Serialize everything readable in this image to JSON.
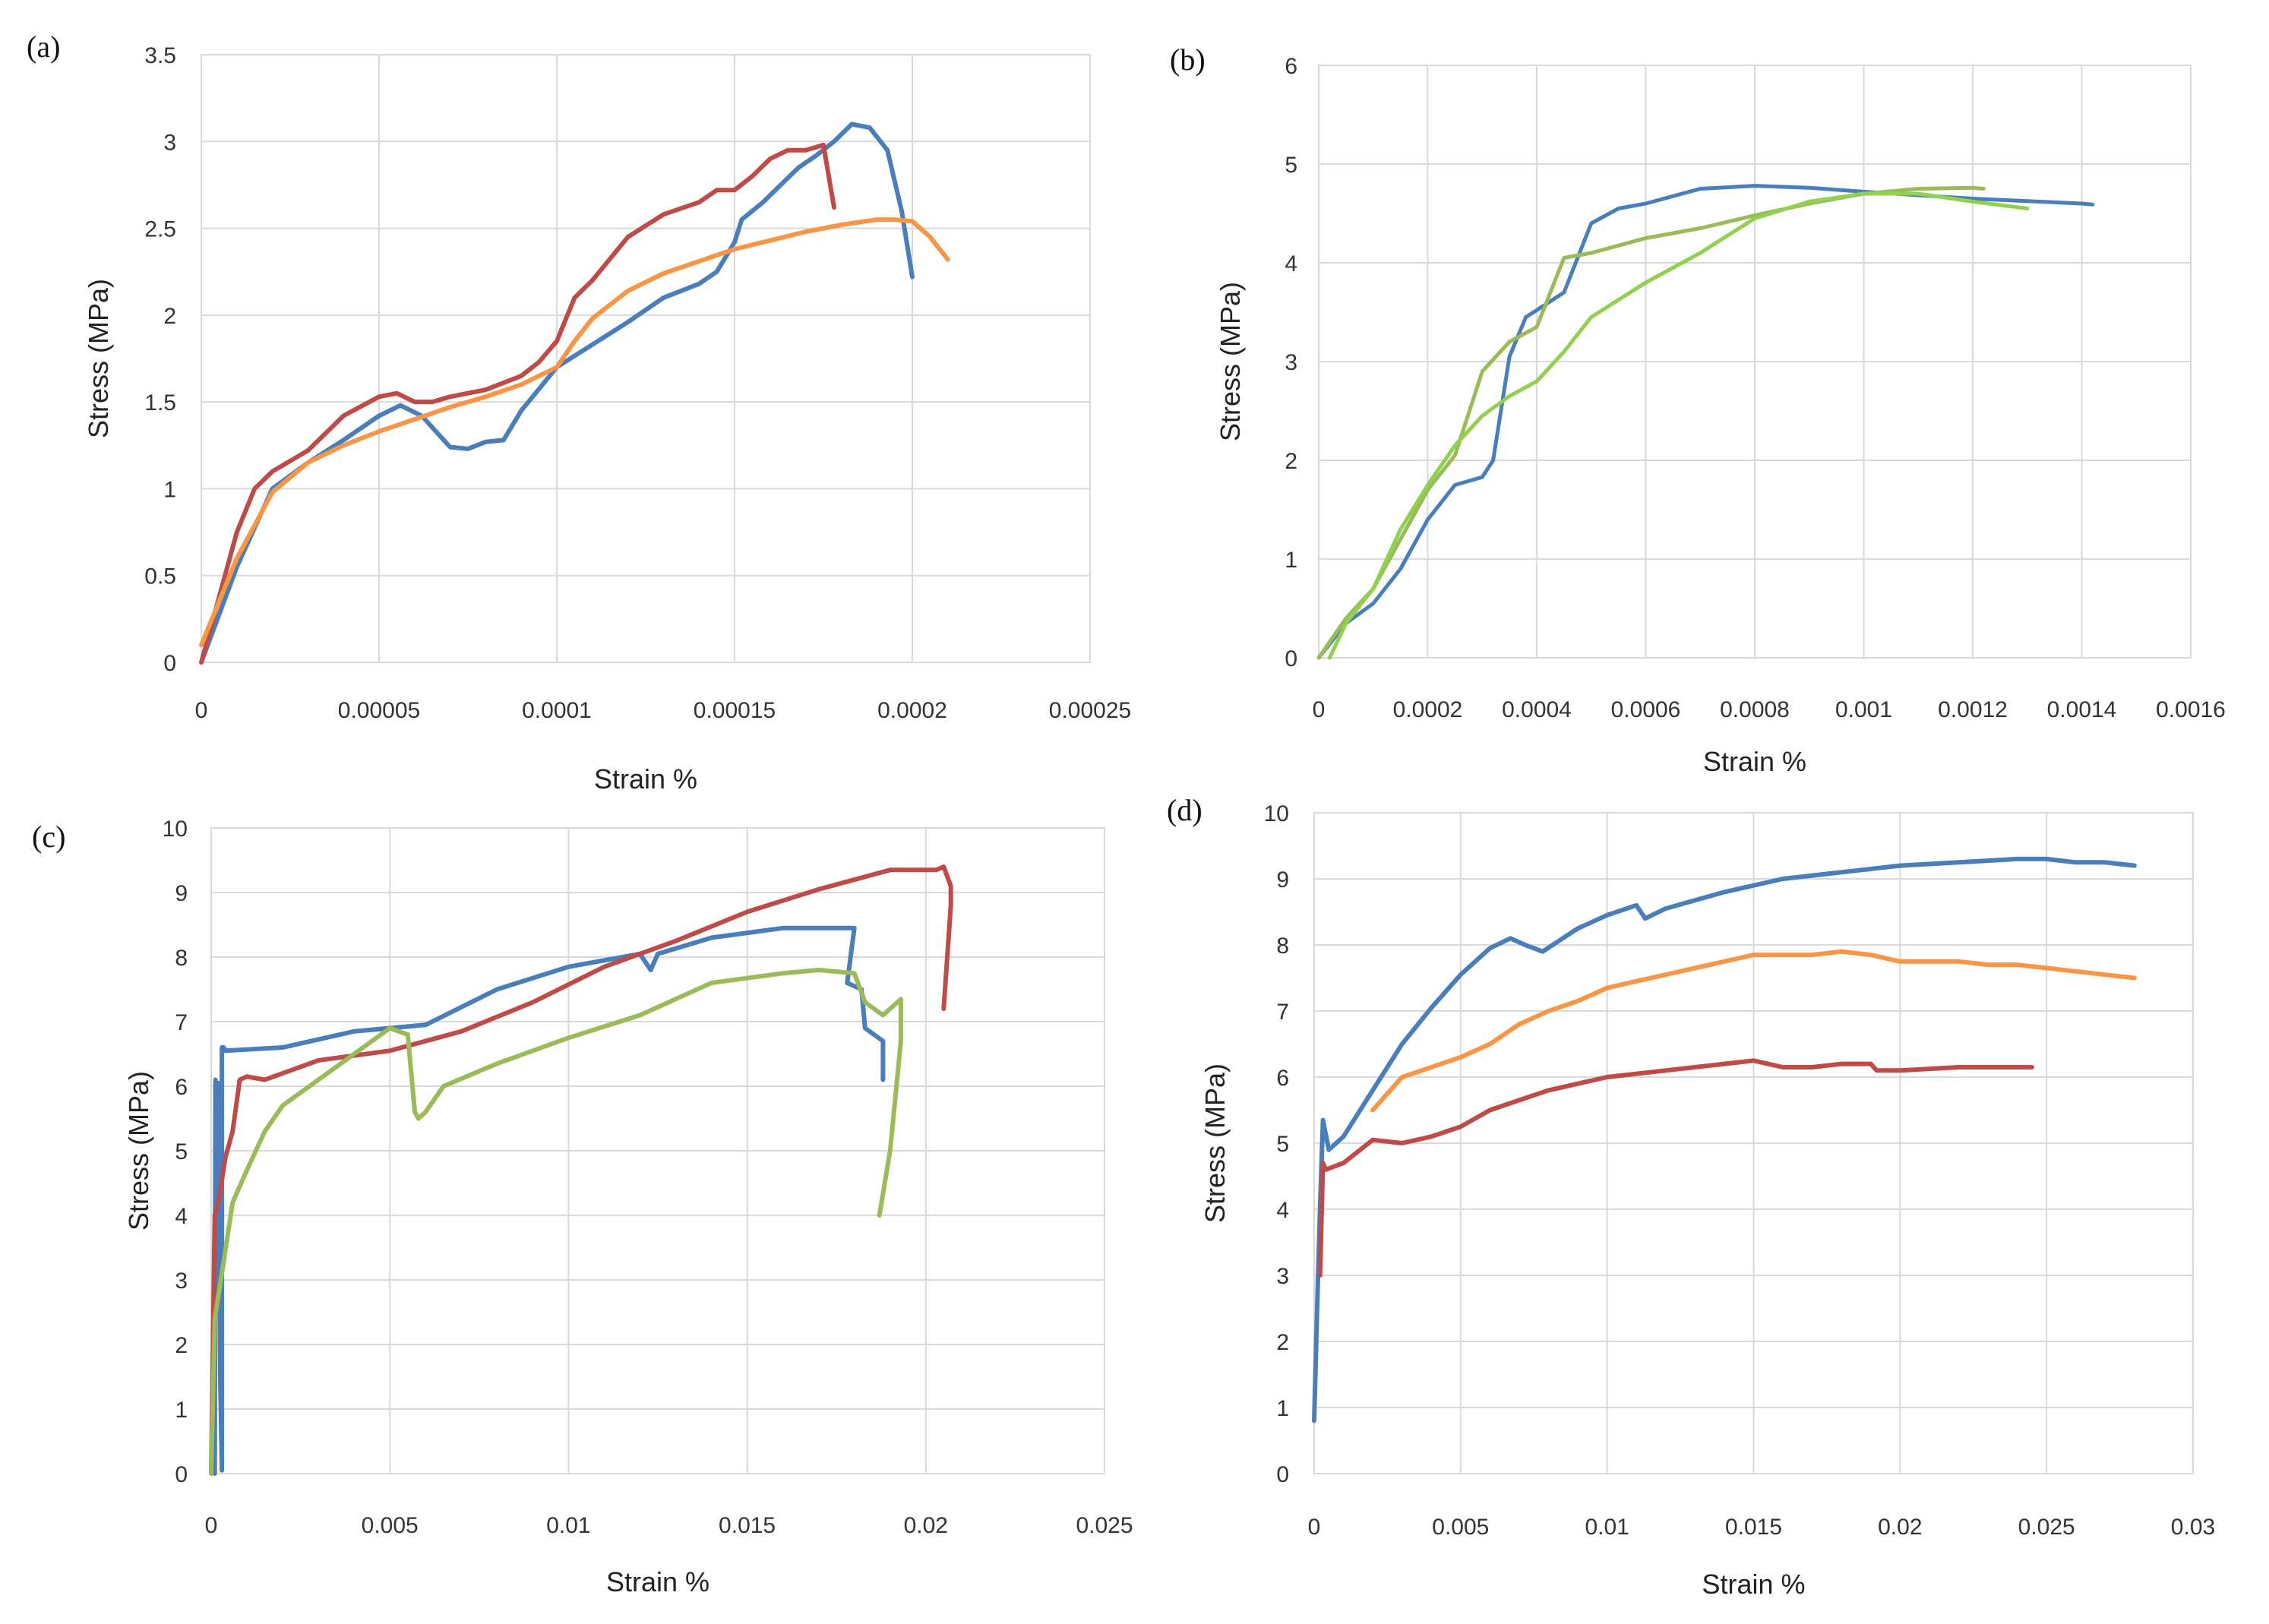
{
  "colors": {
    "blue": "#4a7ebb",
    "red": "#be4b48",
    "orange": "#f79646",
    "green": "#9bbb59",
    "lightgreen": "#92d050"
  },
  "chart_data": [
    {
      "panel": "(a)",
      "type": "line",
      "title": "",
      "xlabel": "Strain %",
      "ylabel": "Stress (MPa)",
      "xlim": [
        0,
        0.00025
      ],
      "ylim": [
        0,
        3.5
      ],
      "xticks": [
        0,
        5e-05,
        0.0001,
        0.00015,
        0.0002,
        0.00025
      ],
      "xtick_labels": [
        "0",
        "0.00005",
        "0.0001",
        "0.00015",
        "0.0002",
        "0.00025"
      ],
      "yticks": [
        0,
        0.5,
        1,
        1.5,
        2,
        2.5,
        3,
        3.5
      ],
      "ytick_labels": [
        "0",
        "0.5",
        "1",
        "1.5",
        "2",
        "2.5",
        "3",
        "3.5"
      ],
      "grid": true,
      "series": [
        {
          "name": "blue",
          "color": "blue",
          "x": [
            0,
            1e-05,
            2e-05,
            3e-05,
            4e-05,
            5e-05,
            5.6e-05,
            6.2e-05,
            7e-05,
            7.5e-05,
            8e-05,
            8.5e-05,
            9e-05,
            0.0001,
            0.00011,
            0.00012,
            0.00013,
            0.00014,
            0.000145,
            0.00015,
            0.000152,
            0.000158,
            0.000163,
            0.000168,
            0.000173,
            0.000178,
            0.000183,
            0.000188,
            0.000193,
            0.000197,
            0.0002
          ],
          "y": [
            0,
            0.55,
            1.0,
            1.15,
            1.28,
            1.42,
            1.48,
            1.42,
            1.24,
            1.23,
            1.27,
            1.28,
            1.45,
            1.7,
            1.83,
            1.96,
            2.1,
            2.18,
            2.25,
            2.42,
            2.55,
            2.65,
            2.75,
            2.85,
            2.92,
            3.0,
            3.1,
            3.08,
            2.95,
            2.6,
            2.22
          ]
        },
        {
          "name": "red",
          "color": "red",
          "x": [
            0,
            1e-05,
            1.5e-05,
            2e-05,
            3e-05,
            4e-05,
            5e-05,
            5.5e-05,
            6e-05,
            6.5e-05,
            7e-05,
            8e-05,
            9e-05,
            9.5e-05,
            0.0001,
            0.000105,
            0.00011,
            0.00012,
            0.00013,
            0.00014,
            0.000145,
            0.00015,
            0.000155,
            0.00016,
            0.000165,
            0.00017,
            0.000175,
            0.000178
          ],
          "y": [
            0,
            0.75,
            1.0,
            1.1,
            1.22,
            1.42,
            1.53,
            1.55,
            1.5,
            1.5,
            1.53,
            1.57,
            1.65,
            1.73,
            1.85,
            2.1,
            2.2,
            2.45,
            2.58,
            2.65,
            2.72,
            2.72,
            2.8,
            2.9,
            2.95,
            2.95,
            2.98,
            2.62
          ]
        },
        {
          "name": "orange",
          "color": "orange",
          "x": [
            0,
            1e-05,
            2e-05,
            3e-05,
            4e-05,
            5e-05,
            6e-05,
            7e-05,
            8e-05,
            9e-05,
            0.0001,
            0.000105,
            0.00011,
            0.00012,
            0.00013,
            0.00014,
            0.00015,
            0.00016,
            0.00017,
            0.00018,
            0.00019,
            0.000195,
            0.0002,
            0.000205,
            0.00021
          ],
          "y": [
            0.1,
            0.6,
            0.98,
            1.15,
            1.25,
            1.33,
            1.4,
            1.47,
            1.53,
            1.6,
            1.7,
            1.85,
            1.98,
            2.14,
            2.24,
            2.31,
            2.38,
            2.43,
            2.48,
            2.52,
            2.55,
            2.55,
            2.54,
            2.45,
            2.32
          ]
        }
      ]
    },
    {
      "panel": "(b)",
      "type": "line",
      "title": "",
      "xlabel": "Strain %",
      "ylabel": "Stress (MPa)",
      "xlim": [
        0,
        0.0016
      ],
      "ylim": [
        0,
        6
      ],
      "xticks": [
        0,
        0.0002,
        0.0004,
        0.0006,
        0.0008,
        0.001,
        0.0012,
        0.0014,
        0.0016
      ],
      "xtick_labels": [
        "0",
        "0.0002",
        "0.0004",
        "0.0006",
        "0.0008",
        "0.001",
        "0.0012",
        "0.0014",
        "0.0016"
      ],
      "yticks": [
        0,
        1,
        2,
        3,
        4,
        5,
        6
      ],
      "ytick_labels": [
        "0",
        "1",
        "2",
        "3",
        "4",
        "5",
        "6"
      ],
      "grid": true,
      "series": [
        {
          "name": "blue",
          "color": "blue",
          "x": [
            0,
            5e-05,
            0.0001,
            0.00015,
            0.0002,
            0.00025,
            0.0003,
            0.00032,
            0.00035,
            0.00038,
            0.0004,
            0.00045,
            0.0005,
            0.00055,
            0.0006,
            0.0007,
            0.0008,
            0.0009,
            0.001,
            0.0012,
            0.0014,
            0.00142
          ],
          "y": [
            0,
            0.35,
            0.55,
            0.9,
            1.4,
            1.75,
            1.83,
            2.0,
            3.05,
            3.45,
            3.52,
            3.7,
            4.4,
            4.55,
            4.6,
            4.75,
            4.78,
            4.76,
            4.72,
            4.65,
            4.6,
            4.59
          ]
        },
        {
          "name": "olive-green",
          "color": "green",
          "x": [
            0,
            5e-05,
            0.0001,
            0.00015,
            0.0002,
            0.00025,
            0.0003,
            0.00035,
            0.0004,
            0.00045,
            0.0005,
            0.0006,
            0.0007,
            0.0008,
            0.0009,
            0.001,
            0.0011,
            0.0012,
            0.00122
          ],
          "y": [
            0,
            0.4,
            0.7,
            1.2,
            1.7,
            2.05,
            2.9,
            3.2,
            3.35,
            4.05,
            4.1,
            4.25,
            4.35,
            4.48,
            4.6,
            4.7,
            4.75,
            4.76,
            4.75
          ]
        },
        {
          "name": "light-green",
          "color": "lightgreen",
          "x": [
            2e-05,
            5e-05,
            0.0001,
            0.00015,
            0.0002,
            0.00025,
            0.0003,
            0.00035,
            0.0004,
            0.00045,
            0.0005,
            0.0006,
            0.0007,
            0.0008,
            0.0009,
            0.001,
            0.0011,
            0.0012,
            0.0013
          ],
          "y": [
            0,
            0.35,
            0.7,
            1.3,
            1.75,
            2.15,
            2.45,
            2.65,
            2.8,
            3.1,
            3.45,
            3.8,
            4.1,
            4.45,
            4.62,
            4.7,
            4.7,
            4.62,
            4.55
          ]
        }
      ]
    },
    {
      "panel": "(c)",
      "type": "line",
      "title": "",
      "xlabel": "Strain %",
      "ylabel": "Stress (MPa)",
      "xlim": [
        0,
        0.025
      ],
      "ylim": [
        0,
        10
      ],
      "xticks": [
        0,
        0.005,
        0.01,
        0.015,
        0.02,
        0.025
      ],
      "xtick_labels": [
        "0",
        "0.005",
        "0.01",
        "0.015",
        "0.02",
        "0.025"
      ],
      "yticks": [
        0,
        1,
        2,
        3,
        4,
        5,
        6,
        7,
        8,
        9,
        10
      ],
      "ytick_labels": [
        "0",
        "1",
        "2",
        "3",
        "4",
        "5",
        "6",
        "7",
        "8",
        "9",
        "10"
      ],
      "grid": true,
      "series": [
        {
          "name": "blue",
          "color": "blue",
          "x": [
            0.0001,
            0.00012,
            0.00015,
            0.0002,
            0.00025,
            0.0003,
            0.0003,
            0.00035,
            0.0004,
            0.002,
            0.004,
            0.006,
            0.008,
            0.01,
            0.012,
            0.0123,
            0.0125,
            0.014,
            0.016,
            0.0175,
            0.018,
            0.0178,
            0.0182,
            0.0183,
            0.0188,
            0.0188
          ],
          "y": [
            0,
            6.1,
            5.0,
            6.05,
            1.6,
            0.05,
            6.6,
            6.6,
            6.55,
            6.6,
            6.85,
            6.95,
            7.5,
            7.85,
            8.05,
            7.8,
            8.05,
            8.3,
            8.45,
            8.45,
            8.45,
            7.6,
            7.5,
            6.9,
            6.7,
            6.1
          ]
        },
        {
          "name": "red",
          "color": "red",
          "x": [
            0,
            0.0001,
            0.0002,
            0.0004,
            0.0006,
            0.0008,
            0.001,
            0.0015,
            0.003,
            0.005,
            0.007,
            0.009,
            0.011,
            0.013,
            0.015,
            0.017,
            0.019,
            0.02,
            0.0203,
            0.0205,
            0.0207,
            0.0207,
            0.0205
          ],
          "y": [
            0,
            4.0,
            4.2,
            4.9,
            5.3,
            6.1,
            6.15,
            6.1,
            6.4,
            6.55,
            6.85,
            7.3,
            7.85,
            8.25,
            8.7,
            9.05,
            9.35,
            9.35,
            9.35,
            9.4,
            9.1,
            8.8,
            7.2
          ]
        },
        {
          "name": "green",
          "color": "green",
          "x": [
            0,
            0.0001,
            0.0003,
            0.0006,
            0.001,
            0.0015,
            0.002,
            0.003,
            0.004,
            0.005,
            0.0055,
            0.0057,
            0.0058,
            0.006,
            0.0065,
            0.008,
            0.01,
            0.012,
            0.014,
            0.016,
            0.017,
            0.018,
            0.0183,
            0.0188,
            0.0193,
            0.0193,
            0.019,
            0.0187
          ],
          "y": [
            0,
            2.4,
            3.1,
            4.2,
            4.7,
            5.3,
            5.7,
            6.1,
            6.5,
            6.9,
            6.8,
            5.6,
            5.5,
            5.6,
            6.0,
            6.35,
            6.75,
            7.1,
            7.6,
            7.75,
            7.8,
            7.75,
            7.3,
            7.1,
            7.35,
            6.7,
            5.0,
            4.0
          ]
        }
      ]
    },
    {
      "panel": "(d)",
      "type": "line",
      "title": "",
      "xlabel": "Strain %",
      "ylabel": "Stress (MPa)",
      "xlim": [
        0,
        0.03
      ],
      "ylim": [
        0,
        10
      ],
      "xticks": [
        0,
        0.005,
        0.01,
        0.015,
        0.02,
        0.025,
        0.03
      ],
      "xtick_labels": [
        "0",
        "0.005",
        "0.01",
        "0.015",
        "0.02",
        "0.025",
        "0.03"
      ],
      "yticks": [
        0,
        1,
        2,
        3,
        4,
        5,
        6,
        7,
        8,
        9,
        10
      ],
      "ytick_labels": [
        "0",
        "1",
        "2",
        "3",
        "4",
        "5",
        "6",
        "7",
        "8",
        "9",
        "10"
      ],
      "grid": true,
      "series": [
        {
          "name": "blue",
          "color": "blue",
          "x": [
            0,
            0.0001,
            0.0002,
            0.0003,
            0.0005,
            0.001,
            0.002,
            0.003,
            0.004,
            0.005,
            0.006,
            0.0067,
            0.0072,
            0.0078,
            0.009,
            0.01,
            0.011,
            0.0113,
            0.012,
            0.014,
            0.016,
            0.018,
            0.02,
            0.022,
            0.024,
            0.025,
            0.026,
            0.027,
            0.028
          ],
          "y": [
            0.8,
            2.5,
            4.0,
            5.35,
            4.9,
            5.1,
            5.8,
            6.5,
            7.05,
            7.55,
            7.95,
            8.1,
            8.0,
            7.9,
            8.25,
            8.45,
            8.6,
            8.4,
            8.55,
            8.8,
            9.0,
            9.1,
            9.2,
            9.25,
            9.3,
            9.3,
            9.25,
            9.25,
            9.2
          ]
        },
        {
          "name": "orange",
          "color": "orange",
          "x": [
            0.002,
            0.003,
            0.004,
            0.005,
            0.006,
            0.007,
            0.008,
            0.009,
            0.01,
            0.011,
            0.012,
            0.013,
            0.014,
            0.015,
            0.016,
            0.017,
            0.018,
            0.019,
            0.02,
            0.021,
            0.022,
            0.023,
            0.024,
            0.025,
            0.026,
            0.027,
            0.028
          ],
          "y": [
            5.5,
            6.0,
            6.15,
            6.3,
            6.5,
            6.8,
            7.0,
            7.15,
            7.35,
            7.45,
            7.55,
            7.65,
            7.75,
            7.85,
            7.85,
            7.85,
            7.9,
            7.85,
            7.75,
            7.75,
            7.75,
            7.7,
            7.7,
            7.65,
            7.6,
            7.55,
            7.5
          ]
        },
        {
          "name": "red",
          "color": "red",
          "x": [
            0.0002,
            0.0003,
            0.0004,
            0.001,
            0.002,
            0.003,
            0.004,
            0.005,
            0.006,
            0.007,
            0.008,
            0.009,
            0.01,
            0.012,
            0.014,
            0.015,
            0.016,
            0.017,
            0.018,
            0.019,
            0.0192,
            0.02,
            0.022,
            0.024,
            0.0245
          ],
          "y": [
            3.0,
            4.7,
            4.6,
            4.7,
            5.05,
            5.0,
            5.1,
            5.25,
            5.5,
            5.65,
            5.8,
            5.9,
            6.0,
            6.1,
            6.2,
            6.25,
            6.15,
            6.15,
            6.2,
            6.2,
            6.1,
            6.1,
            6.15,
            6.15,
            6.15
          ]
        }
      ]
    }
  ]
}
